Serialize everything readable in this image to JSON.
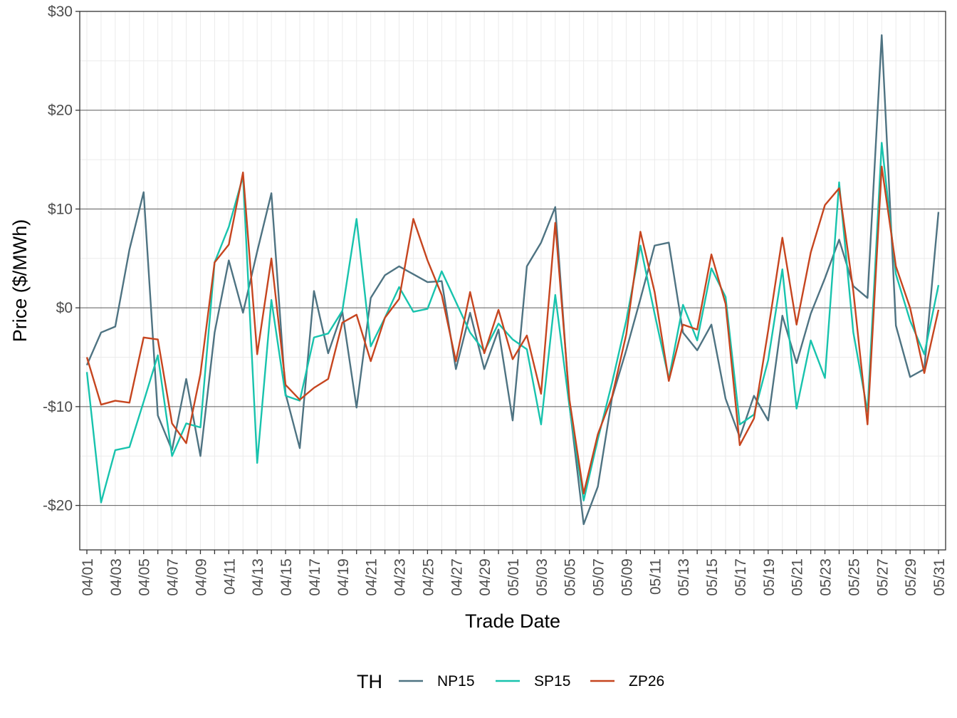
{
  "chart_data": {
    "type": "line",
    "xlabel": "Trade Date",
    "ylabel": "Price ($/MWh)",
    "ylim": [
      -24.5,
      30
    ],
    "y_ticks": [
      -20,
      -10,
      0,
      10,
      20,
      30
    ],
    "y_tick_labels": [
      "-$20",
      "-$10",
      "$0",
      "$10",
      "$20",
      "$30"
    ],
    "x": [
      "04/01",
      "04/02",
      "04/03",
      "04/04",
      "04/05",
      "04/06",
      "04/07",
      "04/08",
      "04/09",
      "04/10",
      "04/11",
      "04/12",
      "04/13",
      "04/14",
      "04/15",
      "04/16",
      "04/17",
      "04/18",
      "04/19",
      "04/20",
      "04/21",
      "04/22",
      "04/23",
      "04/24",
      "04/25",
      "04/26",
      "04/27",
      "04/28",
      "04/29",
      "04/30",
      "05/01",
      "05/02",
      "05/03",
      "05/04",
      "05/05",
      "05/06",
      "05/07",
      "05/08",
      "05/09",
      "05/10",
      "05/11",
      "05/12",
      "05/13",
      "05/14",
      "05/15",
      "05/16",
      "05/17",
      "05/18",
      "05/19",
      "05/20",
      "05/21",
      "05/22",
      "05/23",
      "05/24",
      "05/25",
      "05/26",
      "05/27",
      "05/28",
      "05/29",
      "05/30",
      "05/31"
    ],
    "x_tick_labels": [
      "04/01",
      "04/03",
      "04/05",
      "04/07",
      "04/09",
      "04/11",
      "04/13",
      "04/15",
      "04/17",
      "04/19",
      "04/21",
      "04/23",
      "04/25",
      "04/27",
      "04/29",
      "05/01",
      "05/03",
      "05/05",
      "05/07",
      "05/09",
      "05/11",
      "05/13",
      "05/15",
      "05/17",
      "05/19",
      "05/21",
      "05/23",
      "05/25",
      "05/27",
      "05/29",
      "05/31"
    ],
    "grid": true,
    "legend_title": "TH",
    "legend_position": "bottom",
    "series": [
      {
        "name": "NP15",
        "color": "#4e7382",
        "values": [
          -5.8,
          -2.5,
          -1.9,
          5.9,
          11.7,
          -10.9,
          -14.4,
          -7.2,
          -15.0,
          -2.5,
          4.8,
          -0.5,
          5.7,
          11.6,
          -8.7,
          -14.2,
          1.7,
          -4.6,
          -0.4,
          -10.1,
          1.0,
          3.3,
          4.2,
          3.4,
          2.6,
          2.7,
          -6.2,
          -0.5,
          -6.2,
          -2.2,
          -11.4,
          4.2,
          6.6,
          10.2,
          -9.8,
          -21.9,
          -18.1,
          -9.1,
          -4.3,
          0.9,
          6.3,
          6.6,
          -2.5,
          -4.3,
          -1.7,
          -9.2,
          -13.1,
          -8.9,
          -11.4,
          -0.8,
          -5.6,
          -0.6,
          3.0,
          6.9,
          2.2,
          1.0,
          27.6,
          -1.8,
          -7.0,
          -6.2,
          9.7
        ]
      },
      {
        "name": "SP15",
        "color": "#18c3ad",
        "values": [
          -6.5,
          -19.7,
          -14.4,
          -14.1,
          -9.5,
          -4.8,
          -15.0,
          -11.7,
          -12.1,
          4.6,
          8.2,
          13.3,
          -15.7,
          0.8,
          -8.9,
          -9.4,
          -3.0,
          -2.6,
          -0.3,
          9.0,
          -3.9,
          -1.0,
          2.1,
          -0.4,
          -0.1,
          3.7,
          0.6,
          -2.5,
          -4.4,
          -1.6,
          -3.2,
          -4.2,
          -11.8,
          1.3,
          -10.0,
          -19.5,
          -13.3,
          -7.6,
          -1.3,
          6.3,
          -0.6,
          -7.2,
          0.3,
          -3.3,
          4.0,
          1.1,
          -11.8,
          -10.8,
          -5.3,
          3.9,
          -10.2,
          -3.3,
          -7.1,
          12.7,
          -2.5,
          -10.5,
          16.7,
          3.4,
          -1.3,
          -4.7,
          2.3
        ]
      },
      {
        "name": "ZP26",
        "color": "#c6451f",
        "values": [
          -5.0,
          -9.8,
          -9.4,
          -9.6,
          -3.0,
          -3.2,
          -11.7,
          -13.7,
          -6.7,
          4.6,
          6.4,
          13.7,
          -4.7,
          5.0,
          -7.8,
          -9.3,
          -8.1,
          -7.2,
          -1.5,
          -0.7,
          -5.4,
          -1.0,
          0.9,
          9.0,
          4.8,
          1.3,
          -5.4,
          1.6,
          -4.6,
          -0.2,
          -5.2,
          -2.8,
          -8.7,
          8.6,
          -9.3,
          -18.8,
          -12.8,
          -9.0,
          -2.7,
          7.7,
          1.6,
          -7.4,
          -1.7,
          -2.2,
          5.4,
          0.4,
          -13.9,
          -11.2,
          -2.3,
          7.1,
          -1.7,
          5.6,
          10.4,
          12.1,
          1.7,
          -11.8,
          14.3,
          4.2,
          0.0,
          -6.6,
          -0.2
        ]
      }
    ]
  }
}
